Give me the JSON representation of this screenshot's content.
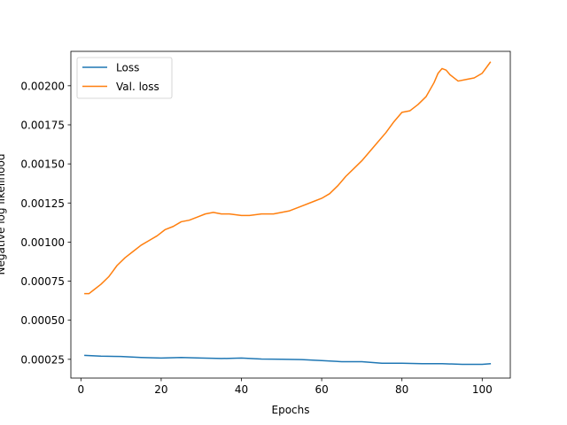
{
  "chart_data": {
    "type": "line",
    "title": "",
    "xlabel": "Epochs",
    "ylabel": "Negative log likelihood",
    "xlim": [
      -2.5,
      107
    ],
    "ylim": [
      0.00013,
      0.00222
    ],
    "xticks": [
      0,
      20,
      40,
      60,
      80,
      100
    ],
    "yticks": [
      0.00025,
      0.0005,
      0.00075,
      0.001,
      0.00125,
      0.0015,
      0.00175,
      0.002
    ],
    "ytick_labels": [
      "0.00025",
      "0.00050",
      "0.00075",
      "0.00100",
      "0.00125",
      "0.00150",
      "0.00175",
      "0.00200"
    ],
    "grid": false,
    "legend": "top-left",
    "series": [
      {
        "name": "Loss",
        "color": "#1f77b4",
        "x": [
          1,
          5,
          10,
          15,
          20,
          25,
          30,
          35,
          40,
          45,
          50,
          55,
          60,
          65,
          70,
          75,
          80,
          85,
          90,
          95,
          100,
          102
        ],
        "y": [
          0.000275,
          0.00027,
          0.000268,
          0.000262,
          0.000258,
          0.000262,
          0.000258,
          0.000255,
          0.000258,
          0.000252,
          0.00025,
          0.000248,
          0.000242,
          0.000235,
          0.000235,
          0.000225,
          0.000225,
          0.000222,
          0.000222,
          0.000218,
          0.000218,
          0.000222
        ]
      },
      {
        "name": "Val. loss",
        "color": "#ff7f0e",
        "x": [
          1,
          2,
          3,
          5,
          7,
          9,
          11,
          13,
          15,
          17,
          19,
          21,
          23,
          25,
          27,
          29,
          31,
          33,
          35,
          37,
          40,
          42,
          45,
          48,
          50,
          52,
          55,
          58,
          60,
          62,
          64,
          66,
          68,
          70,
          72,
          74,
          76,
          78,
          80,
          82,
          84,
          86,
          88,
          89,
          90,
          91,
          92,
          94,
          96,
          98,
          100,
          102
        ],
        "y": [
          0.00067,
          0.00067,
          0.00069,
          0.00073,
          0.00078,
          0.00085,
          0.0009,
          0.00094,
          0.00098,
          0.00101,
          0.00104,
          0.00108,
          0.0011,
          0.00113,
          0.00114,
          0.00116,
          0.00118,
          0.00119,
          0.00118,
          0.00118,
          0.00117,
          0.00117,
          0.00118,
          0.00118,
          0.00119,
          0.0012,
          0.00123,
          0.00126,
          0.00128,
          0.00131,
          0.00136,
          0.00142,
          0.00147,
          0.00152,
          0.00158,
          0.00164,
          0.0017,
          0.00177,
          0.00183,
          0.00184,
          0.00188,
          0.00193,
          0.00202,
          0.00208,
          0.00211,
          0.0021,
          0.00207,
          0.00203,
          0.00204,
          0.00205,
          0.00208,
          0.00215
        ]
      }
    ]
  }
}
